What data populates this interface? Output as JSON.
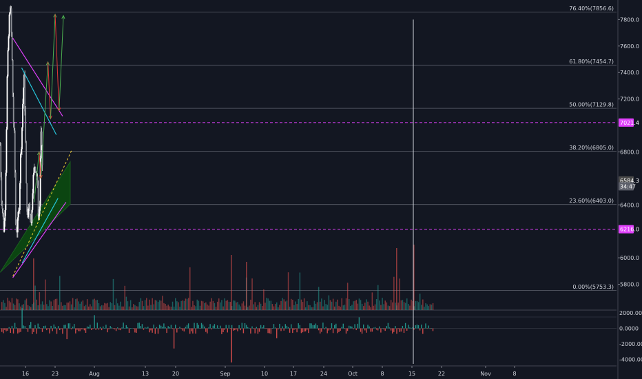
{
  "chart_data": {
    "type": "candlestick",
    "title": "",
    "x_ticks": [
      "16",
      "23",
      "Aug",
      "13",
      "20",
      "Sep",
      "10",
      "17",
      "24",
      "Oct",
      "8",
      "15",
      "22",
      "Nov",
      "8"
    ],
    "y_ticks": [
      5800,
      6000,
      6400,
      6800,
      7200,
      7400,
      7600,
      7800
    ],
    "ylim": [
      5700,
      8050
    ],
    "fib_levels": [
      {
        "label": "0.00%(5753.3)",
        "value": 5753.3
      },
      {
        "label": "23.60%(6403.0)",
        "value": 6403.0
      },
      {
        "label": "38.20%(6805.0)",
        "value": 6805.0
      },
      {
        "label": "50.00%(7129.8)",
        "value": 7129.8
      },
      {
        "label": "61.80%(7454.7)",
        "value": 7454.7
      },
      {
        "label": "76.40%(7856.6)",
        "value": 7856.6
      }
    ],
    "price_labels": [
      {
        "text": "7021.4",
        "value": 7021.4,
        "color": "#e040fb"
      },
      {
        "text": "6584.3",
        "value": 6584.3,
        "color": "#4a4a4a"
      },
      {
        "text": "34:47",
        "value": 6540,
        "color": "#5d606b"
      },
      {
        "text": "6216.0",
        "value": 6216.0,
        "color": "#e040fb"
      }
    ],
    "dashed_levels": [
      {
        "value": 7021.4,
        "color": "#e040fb"
      },
      {
        "value": 6216.0,
        "color": "#e040fb"
      }
    ],
    "close_series": [
      6850,
      6470,
      6350,
      6210,
      6330,
      6800,
      7420,
      7650,
      7900,
      7850,
      7500,
      7050,
      6900,
      6250,
      6190,
      6300,
      6400,
      6750,
      6900,
      7200,
      7380,
      7000,
      6450,
      6280,
      6430,
      6320,
      6250,
      6500,
      6650,
      6700,
      6660,
      6600,
      6300,
      6360,
      6980,
      6780,
      6595
    ],
    "projection_path": [
      [
        18.05,
        6420
      ],
      [
        19.23,
        6800
      ],
      [
        19.65,
        6600
      ],
      [
        21.32,
        7480
      ],
      [
        21.94,
        7050
      ],
      [
        23.02,
        7840
      ],
      [
        23.96,
        7110
      ],
      [
        24.98,
        7830
      ]
    ],
    "volume_ticks": [
      {
        "label": "2000.0000",
        "value": 2000
      },
      {
        "label": "0.0000",
        "value": 0
      },
      {
        "label": "-2000.0000",
        "value": -2000
      },
      {
        "label": "-4000.0000",
        "value": -4000
      }
    ]
  }
}
